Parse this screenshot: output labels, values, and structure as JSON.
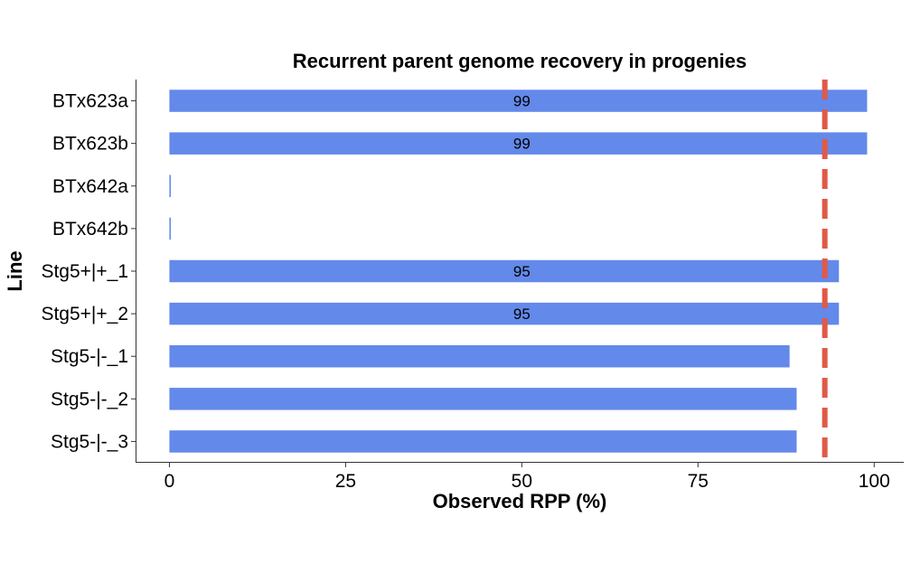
{
  "chart_data": {
    "type": "bar",
    "orientation": "horizontal",
    "title": "Recurrent parent genome recovery in progenies",
    "xlabel": "Observed RPP (%)",
    "ylabel": "Line",
    "categories": [
      "BTx623a",
      "BTx623b",
      "BTx642a",
      "BTx642b",
      "Stg5+|+_1",
      "Stg5+|+_2",
      "Stg5-|-_1",
      "Stg5-|-_2",
      "Stg5-|-_3"
    ],
    "values": [
      99,
      99,
      0.2,
      0.2,
      95,
      95,
      88,
      89,
      89
    ],
    "data_labels": [
      "99",
      "99",
      "",
      "",
      "95",
      "95",
      "",
      "",
      ""
    ],
    "xticks": [
      "0",
      "25",
      "50",
      "75",
      "100"
    ],
    "xlim": [
      -4.8,
      104.2
    ],
    "reference_line": {
      "x": 93,
      "style": "dashed",
      "color": "#e05a47"
    },
    "bar_color": "#6389ea",
    "grid": false,
    "legend": "none"
  }
}
